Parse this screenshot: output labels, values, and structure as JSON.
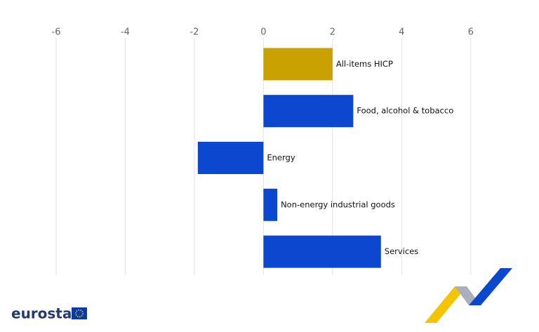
{
  "chart_data": {
    "type": "bar",
    "orientation": "horizontal",
    "categories": [
      "All-items HICP",
      "Food, alcohol & tobacco",
      "Energy",
      "Non-energy industrial goods",
      "Services"
    ],
    "values": [
      2.0,
      2.6,
      -1.9,
      0.4,
      3.4
    ],
    "colors": [
      "#c9a100",
      "#0c47d0",
      "#0c47d0",
      "#0c47d0",
      "#0c47d0"
    ],
    "xlim": [
      -6,
      7
    ],
    "xticks": [
      -6,
      -4,
      -2,
      0,
      2,
      4,
      6
    ],
    "grid": true
  },
  "footer": {
    "logo": "eurostat"
  }
}
